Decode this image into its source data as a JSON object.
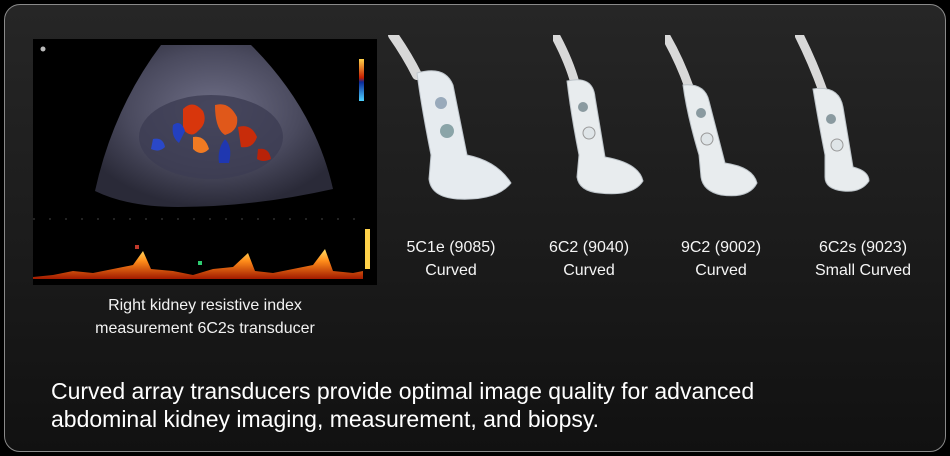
{
  "ultrasound": {
    "caption_line1": "Right kidney resistive index",
    "caption_line2": "measurement 6C2s transducer"
  },
  "transducers": [
    {
      "model": "5C1e (9085)",
      "type": "Curved"
    },
    {
      "model": "6C2 (9040)",
      "type": "Curved"
    },
    {
      "model": "9C2 (9002)",
      "type": "Curved"
    },
    {
      "model": "6C2s (9023)",
      "type": "Small Curved"
    }
  ],
  "statement": {
    "line1": "Curved array transducers provide optimal image quality for advanced",
    "line2": "abdominal kidney imaging, measurement, and biopsy."
  }
}
